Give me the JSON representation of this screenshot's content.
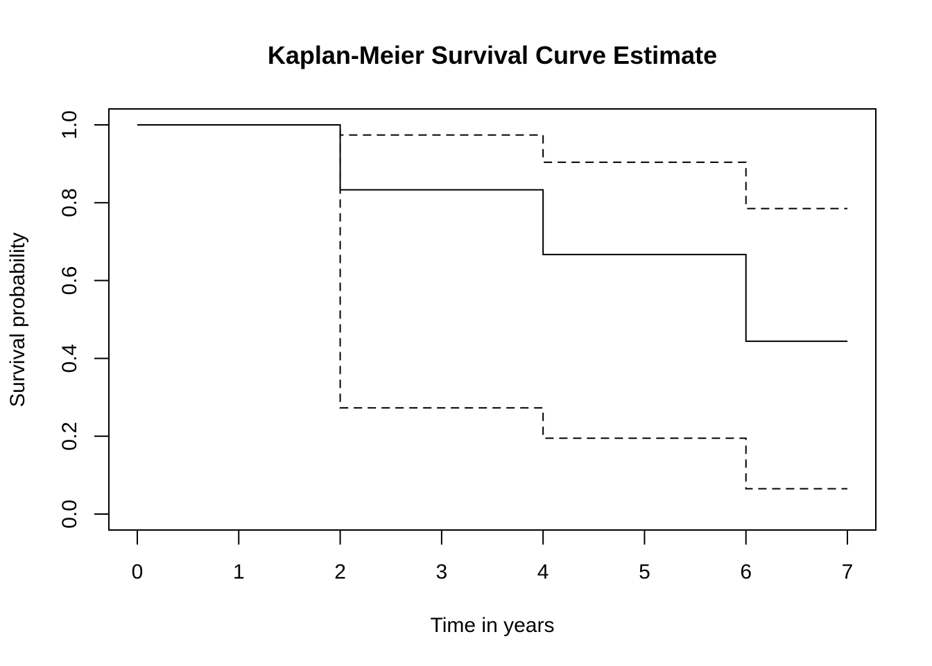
{
  "chart_data": {
    "type": "line",
    "title": "Kaplan-Meier Survival Curve Estimate",
    "xlabel": "Time in years",
    "ylabel": "Survival probability",
    "xlim": [
      0,
      7
    ],
    "ylim": [
      0,
      1
    ],
    "x_ticks": [
      "0",
      "1",
      "2",
      "3",
      "4",
      "5",
      "6",
      "7"
    ],
    "y_ticks": [
      "0.0",
      "0.2",
      "0.4",
      "0.6",
      "0.8",
      "1.0"
    ],
    "grid": false,
    "step": true,
    "series": [
      {
        "style": "solid",
        "x": [
          0,
          2,
          4,
          6,
          7
        ],
        "y": [
          1.0,
          0.833,
          0.667,
          0.444,
          0.444
        ]
      },
      {
        "style": "dashed",
        "x": [
          0,
          2,
          4,
          6,
          7
        ],
        "y": [
          1.0,
          0.974,
          0.904,
          0.785,
          0.785
        ]
      },
      {
        "style": "dashed",
        "x": [
          0,
          2,
          4,
          6,
          7
        ],
        "y": [
          1.0,
          0.273,
          0.195,
          0.065,
          0.065
        ]
      }
    ]
  }
}
